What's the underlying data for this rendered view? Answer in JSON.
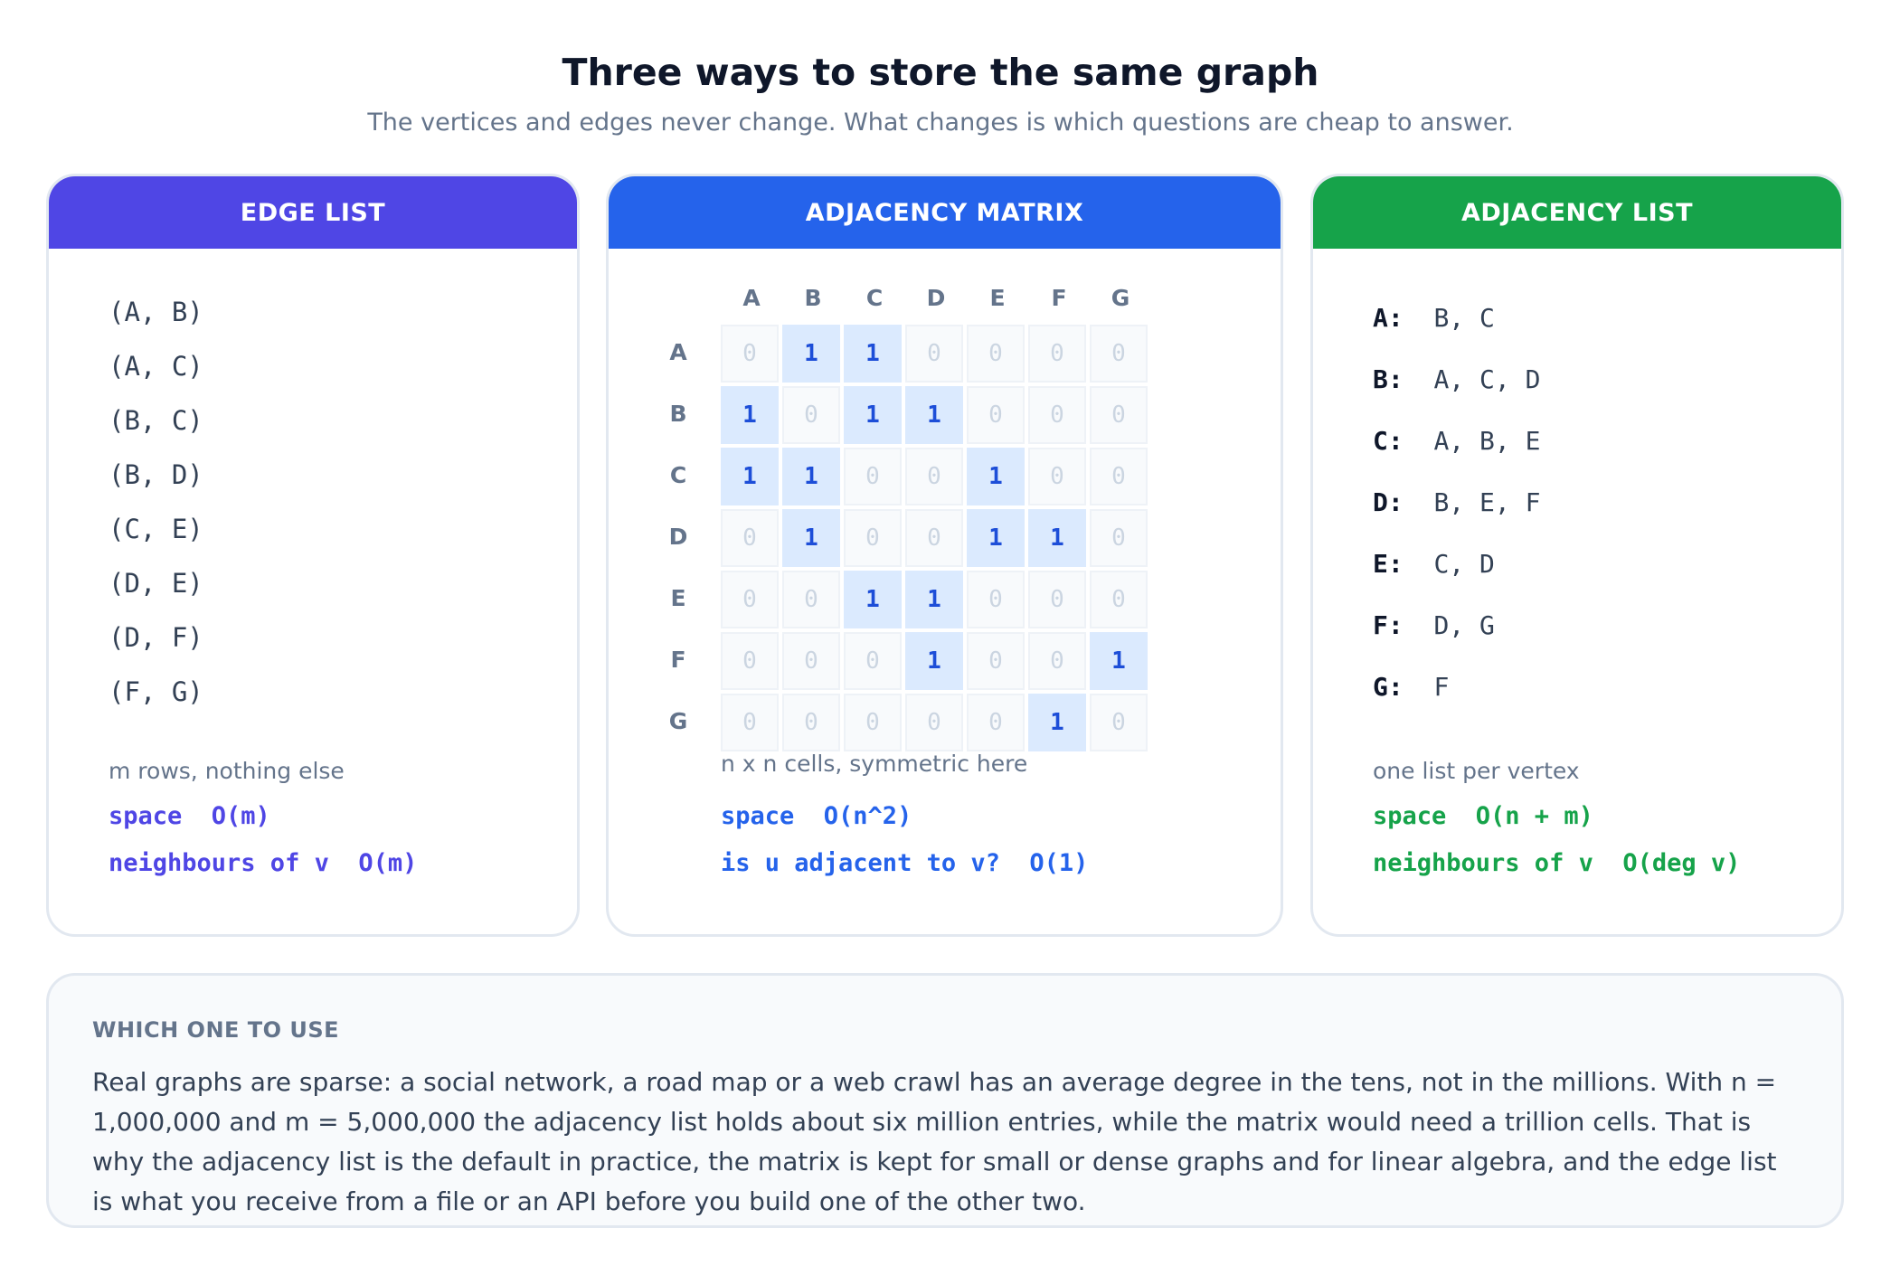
{
  "header": {
    "title": "Three ways to store the same graph",
    "subtitle": "The vertices and edges never change. What changes is which questions are cheap to answer."
  },
  "colors": {
    "edge_list": "#4f46e5",
    "matrix": "#2563eb",
    "adjacency_list": "#16a34a"
  },
  "edge_list": {
    "title": "EDGE LIST",
    "edges": [
      "(A, B)",
      "(A, C)",
      "(B, C)",
      "(B, D)",
      "(C, E)",
      "(D, E)",
      "(D, F)",
      "(F, G)"
    ],
    "note": "m rows, nothing else",
    "stat1": "space  O(m)",
    "stat2": "neighbours of v  O(m)"
  },
  "matrix": {
    "title": "ADJACENCY MATRIX",
    "labels": [
      "A",
      "B",
      "C",
      "D",
      "E",
      "F",
      "G"
    ],
    "rows": [
      [
        0,
        1,
        1,
        0,
        0,
        0,
        0
      ],
      [
        1,
        0,
        1,
        1,
        0,
        0,
        0
      ],
      [
        1,
        1,
        0,
        0,
        1,
        0,
        0
      ],
      [
        0,
        1,
        0,
        0,
        1,
        1,
        0
      ],
      [
        0,
        0,
        1,
        1,
        0,
        0,
        0
      ],
      [
        0,
        0,
        0,
        1,
        0,
        0,
        1
      ],
      [
        0,
        0,
        0,
        0,
        0,
        1,
        0
      ]
    ],
    "note": "n x n cells, symmetric here",
    "stat1": "space  O(n^2)",
    "stat2": "is u adjacent to v?  O(1)"
  },
  "adjacency_list": {
    "title": "ADJACENCY LIST",
    "entries": [
      {
        "key": "A:",
        "value": "B, C"
      },
      {
        "key": "B:",
        "value": "A, C, D"
      },
      {
        "key": "C:",
        "value": "A, B, E"
      },
      {
        "key": "D:",
        "value": "B, E, F"
      },
      {
        "key": "E:",
        "value": "C, D"
      },
      {
        "key": "F:",
        "value": "D, G"
      },
      {
        "key": "G:",
        "value": "F"
      }
    ],
    "note": "one list per vertex",
    "stat1": "space  O(n + m)",
    "stat2": "neighbours of v  O(deg v)"
  },
  "bottom": {
    "title": "WHICH ONE TO USE",
    "text": "Real graphs are sparse: a social network, a road map or a web crawl has an average degree in the tens, not in the millions. With n = 1,000,000 and m = 5,000,000 the adjacency list holds about six million entries, while the matrix would need a trillion cells. That is why the adjacency list is the default in practice, the matrix is kept for small or dense graphs and for linear algebra, and the edge list is what you receive from a file or an API before you build one of the other two."
  }
}
